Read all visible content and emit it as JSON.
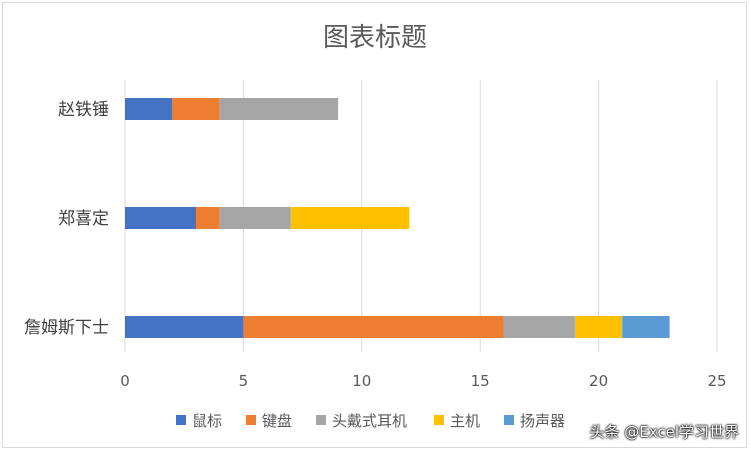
{
  "chart_data": {
    "type": "bar",
    "orientation": "horizontal",
    "stacked": true,
    "title": "图表标题",
    "categories": [
      "赵铁锤",
      "郑喜定",
      "詹姆斯下士"
    ],
    "series": [
      {
        "name": "鼠标",
        "color": "#4472C4",
        "values": [
          2,
          3,
          5
        ]
      },
      {
        "name": "键盘",
        "color": "#ED7D31",
        "values": [
          2,
          1,
          11
        ]
      },
      {
        "name": "头戴式耳机",
        "color": "#A5A5A5",
        "values": [
          5,
          3,
          3
        ]
      },
      {
        "name": "主机",
        "color": "#FFC000",
        "values": [
          0,
          5,
          2
        ]
      },
      {
        "name": "扬声器",
        "color": "#5B9BD5",
        "values": [
          0,
          0,
          2
        ]
      }
    ],
    "xlim": [
      0,
      25
    ],
    "xticks": [
      0,
      5,
      10,
      15,
      20,
      25
    ],
    "grid": "vertical",
    "legend_position": "bottom"
  },
  "watermark": "头条 @Excel学习世界"
}
